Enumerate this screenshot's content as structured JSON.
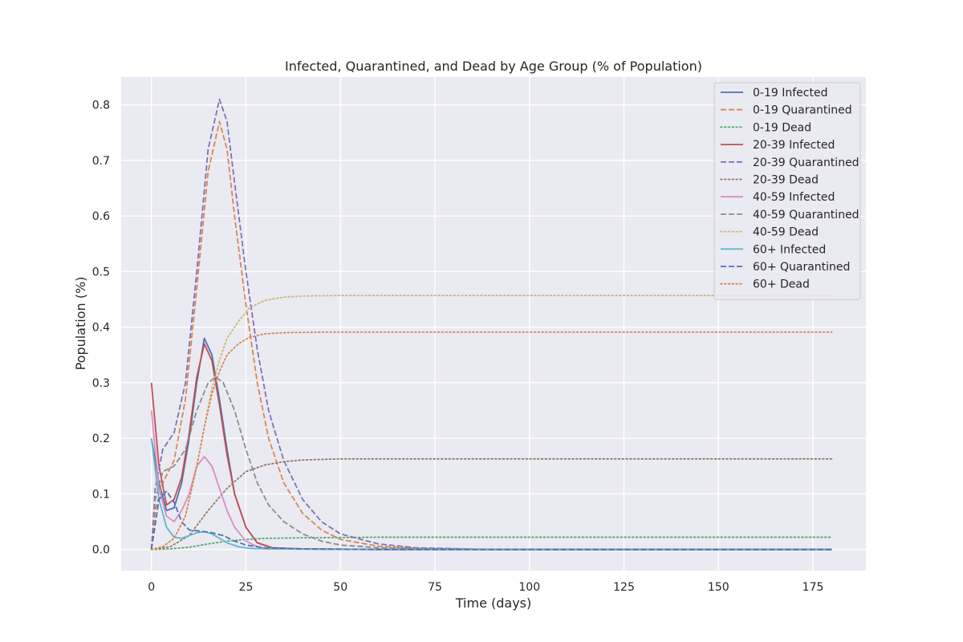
{
  "chart_data": {
    "type": "line",
    "title": "Infected, Quarantined, and Dead by Age Group (% of Population)",
    "xlabel": "Time (days)",
    "ylabel": "Population (%)",
    "xlim": [
      -8,
      189
    ],
    "ylim": [
      -0.038,
      0.85
    ],
    "xticks": [
      0,
      25,
      50,
      75,
      100,
      125,
      150,
      175
    ],
    "yticks": [
      0.0,
      0.1,
      0.2,
      0.3,
      0.4,
      0.5,
      0.6,
      0.7,
      0.8
    ],
    "ytick_labels": [
      "0.0",
      "0.1",
      "0.2",
      "0.3",
      "0.4",
      "0.5",
      "0.6",
      "0.7",
      "0.8"
    ],
    "grid": true,
    "legend_position": "top-right",
    "background": "#eaeaf2",
    "series": [
      {
        "name": "0-19 Infected",
        "color": "#4c72b0",
        "style": "solid",
        "points": [
          [
            0,
            0.2
          ],
          [
            2,
            0.12
          ],
          [
            4,
            0.07
          ],
          [
            6,
            0.075
          ],
          [
            8,
            0.12
          ],
          [
            10,
            0.2
          ],
          [
            12,
            0.3
          ],
          [
            14,
            0.38
          ],
          [
            16,
            0.35
          ],
          [
            18,
            0.27
          ],
          [
            20,
            0.18
          ],
          [
            22,
            0.1
          ],
          [
            25,
            0.04
          ],
          [
            28,
            0.012
          ],
          [
            32,
            0.003
          ],
          [
            40,
            0.001
          ],
          [
            60,
            0
          ],
          [
            100,
            0
          ],
          [
            180,
            0
          ]
        ]
      },
      {
        "name": "0-19 Quarantined",
        "color": "#dd8452",
        "style": "dashed",
        "points": [
          [
            0,
            0
          ],
          [
            1,
            0.07
          ],
          [
            3,
            0.12
          ],
          [
            6,
            0.16
          ],
          [
            9,
            0.27
          ],
          [
            12,
            0.47
          ],
          [
            15,
            0.68
          ],
          [
            18,
            0.77
          ],
          [
            20,
            0.72
          ],
          [
            22,
            0.6
          ],
          [
            25,
            0.44
          ],
          [
            28,
            0.3
          ],
          [
            31,
            0.2
          ],
          [
            35,
            0.12
          ],
          [
            40,
            0.065
          ],
          [
            45,
            0.035
          ],
          [
            50,
            0.018
          ],
          [
            60,
            0.006
          ],
          [
            70,
            0.002
          ],
          [
            90,
            0
          ],
          [
            180,
            0
          ]
        ]
      },
      {
        "name": "0-19 Dead",
        "color": "#55a868",
        "style": "dotted",
        "points": [
          [
            0,
            0
          ],
          [
            5,
            0.001
          ],
          [
            10,
            0.004
          ],
          [
            15,
            0.01
          ],
          [
            20,
            0.015
          ],
          [
            25,
            0.018
          ],
          [
            30,
            0.02
          ],
          [
            40,
            0.021
          ],
          [
            60,
            0.022
          ],
          [
            100,
            0.022
          ],
          [
            180,
            0.022
          ]
        ]
      },
      {
        "name": "20-39 Infected",
        "color": "#c44e52",
        "style": "solid",
        "points": [
          [
            0,
            0.3
          ],
          [
            2,
            0.15
          ],
          [
            4,
            0.08
          ],
          [
            6,
            0.09
          ],
          [
            8,
            0.13
          ],
          [
            10,
            0.21
          ],
          [
            12,
            0.31
          ],
          [
            14,
            0.37
          ],
          [
            16,
            0.34
          ],
          [
            18,
            0.26
          ],
          [
            20,
            0.17
          ],
          [
            22,
            0.1
          ],
          [
            25,
            0.04
          ],
          [
            28,
            0.012
          ],
          [
            32,
            0.003
          ],
          [
            40,
            0.001
          ],
          [
            60,
            0
          ],
          [
            180,
            0
          ]
        ]
      },
      {
        "name": "20-39 Quarantined",
        "color": "#8172b3",
        "style": "dashed",
        "points": [
          [
            0,
            0
          ],
          [
            1,
            0.11
          ],
          [
            3,
            0.18
          ],
          [
            6,
            0.21
          ],
          [
            9,
            0.3
          ],
          [
            12,
            0.5
          ],
          [
            15,
            0.72
          ],
          [
            18,
            0.81
          ],
          [
            20,
            0.77
          ],
          [
            22,
            0.66
          ],
          [
            25,
            0.5
          ],
          [
            28,
            0.36
          ],
          [
            31,
            0.25
          ],
          [
            35,
            0.16
          ],
          [
            40,
            0.09
          ],
          [
            45,
            0.05
          ],
          [
            50,
            0.028
          ],
          [
            60,
            0.01
          ],
          [
            70,
            0.003
          ],
          [
            90,
            0
          ],
          [
            180,
            0
          ]
        ]
      },
      {
        "name": "20-39 Dead",
        "color": "#937860",
        "style": "dotted",
        "points": [
          [
            0,
            0
          ],
          [
            5,
            0.005
          ],
          [
            10,
            0.025
          ],
          [
            15,
            0.07
          ],
          [
            20,
            0.11
          ],
          [
            25,
            0.14
          ],
          [
            30,
            0.152
          ],
          [
            35,
            0.158
          ],
          [
            40,
            0.161
          ],
          [
            50,
            0.163
          ],
          [
            70,
            0.163
          ],
          [
            180,
            0.163
          ]
        ]
      },
      {
        "name": "40-59 Infected",
        "color": "#da8bc3",
        "style": "solid",
        "points": [
          [
            0,
            0.25
          ],
          [
            2,
            0.11
          ],
          [
            4,
            0.06
          ],
          [
            6,
            0.05
          ],
          [
            8,
            0.07
          ],
          [
            10,
            0.1
          ],
          [
            12,
            0.15
          ],
          [
            14,
            0.167
          ],
          [
            16,
            0.15
          ],
          [
            18,
            0.11
          ],
          [
            20,
            0.07
          ],
          [
            22,
            0.04
          ],
          [
            25,
            0.015
          ],
          [
            28,
            0.005
          ],
          [
            32,
            0.001
          ],
          [
            60,
            0
          ],
          [
            180,
            0
          ]
        ]
      },
      {
        "name": "40-59 Quarantined",
        "color": "#8c8c8c",
        "style": "dashed",
        "points": [
          [
            0,
            0
          ],
          [
            1,
            0.09
          ],
          [
            3,
            0.14
          ],
          [
            6,
            0.15
          ],
          [
            9,
            0.18
          ],
          [
            12,
            0.25
          ],
          [
            15,
            0.3
          ],
          [
            17,
            0.31
          ],
          [
            19,
            0.3
          ],
          [
            22,
            0.25
          ],
          [
            25,
            0.18
          ],
          [
            28,
            0.12
          ],
          [
            31,
            0.08
          ],
          [
            35,
            0.05
          ],
          [
            40,
            0.028
          ],
          [
            45,
            0.015
          ],
          [
            50,
            0.008
          ],
          [
            60,
            0.003
          ],
          [
            80,
            0
          ],
          [
            180,
            0
          ]
        ]
      },
      {
        "name": "40-59 Dead",
        "color": "#ccb974",
        "style": "dotted",
        "points": [
          [
            0,
            0
          ],
          [
            3,
            0.005
          ],
          [
            6,
            0.02
          ],
          [
            9,
            0.06
          ],
          [
            12,
            0.15
          ],
          [
            14,
            0.22
          ],
          [
            16,
            0.29
          ],
          [
            18,
            0.34
          ],
          [
            20,
            0.38
          ],
          [
            23,
            0.41
          ],
          [
            26,
            0.435
          ],
          [
            30,
            0.448
          ],
          [
            35,
            0.454
          ],
          [
            40,
            0.456
          ],
          [
            50,
            0.457
          ],
          [
            80,
            0.457
          ],
          [
            180,
            0.457
          ]
        ]
      },
      {
        "name": "60+ Infected",
        "color": "#64b5cd",
        "style": "solid",
        "points": [
          [
            0,
            0.2
          ],
          [
            2,
            0.09
          ],
          [
            4,
            0.04
          ],
          [
            6,
            0.022
          ],
          [
            8,
            0.02
          ],
          [
            10,
            0.025
          ],
          [
            12,
            0.03
          ],
          [
            14,
            0.032
          ],
          [
            16,
            0.028
          ],
          [
            18,
            0.02
          ],
          [
            20,
            0.012
          ],
          [
            23,
            0.005
          ],
          [
            26,
            0.002
          ],
          [
            30,
            0.001
          ],
          [
            60,
            0
          ],
          [
            180,
            0
          ]
        ]
      },
      {
        "name": "60+ Quarantined",
        "color": "#4c72b0",
        "style": "dashed",
        "points": [
          [
            0,
            0
          ],
          [
            2,
            0.09
          ],
          [
            4,
            0.105
          ],
          [
            6,
            0.085
          ],
          [
            8,
            0.05
          ],
          [
            10,
            0.035
          ],
          [
            13,
            0.033
          ],
          [
            16,
            0.03
          ],
          [
            19,
            0.025
          ],
          [
            22,
            0.015
          ],
          [
            25,
            0.008
          ],
          [
            30,
            0.003
          ],
          [
            40,
            0.001
          ],
          [
            60,
            0
          ],
          [
            180,
            0
          ]
        ]
      },
      {
        "name": "60+ Dead",
        "color": "#dd8452",
        "style": "dotted",
        "points": [
          [
            0,
            0
          ],
          [
            3,
            0.005
          ],
          [
            6,
            0.02
          ],
          [
            9,
            0.06
          ],
          [
            12,
            0.15
          ],
          [
            14,
            0.22
          ],
          [
            16,
            0.28
          ],
          [
            18,
            0.32
          ],
          [
            20,
            0.35
          ],
          [
            23,
            0.37
          ],
          [
            26,
            0.382
          ],
          [
            30,
            0.388
          ],
          [
            35,
            0.39
          ],
          [
            45,
            0.391
          ],
          [
            80,
            0.391
          ],
          [
            180,
            0.391
          ]
        ]
      }
    ]
  }
}
